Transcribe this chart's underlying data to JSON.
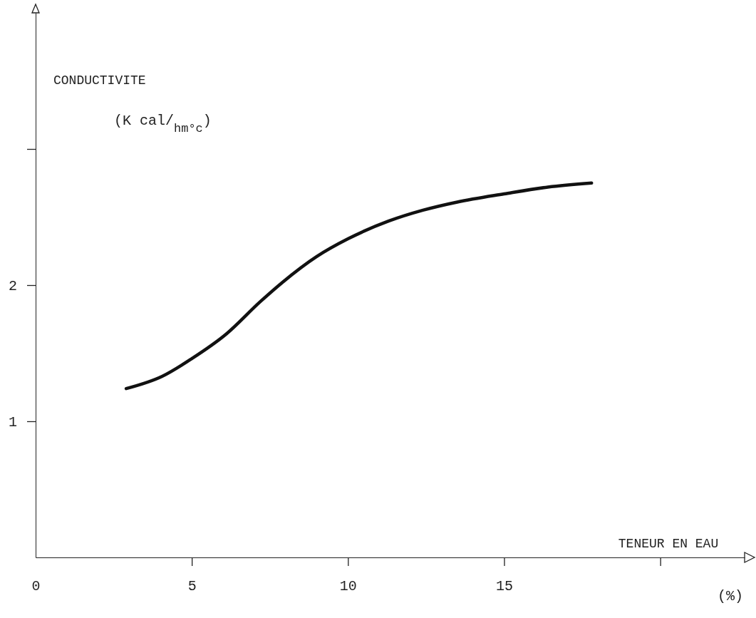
{
  "chart_data": {
    "type": "line",
    "xlabel": "TENEUR EN EAU",
    "ylabel": "CONDUCTIVITE",
    "annotations": [
      "(K cal/$_{hm°c}$)",
      "(%)"
    ],
    "xlim": [
      0,
      22.7
    ],
    "ylim": [
      0,
      4
    ],
    "xticks": [
      0,
      5,
      10,
      15,
      {
        "value": 20,
        "label": null
      }
    ],
    "yticks": [
      1,
      2,
      {
        "value": 3,
        "label": null
      }
    ],
    "grid": false,
    "legend": false,
    "marker": "none",
    "line_style": "solid",
    "series": [
      {
        "color": "#111111",
        "x": [
          2.9,
          4.05,
          5,
          6.1,
          7.2,
          7.9,
          9,
          10,
          11.3,
          12.4,
          13.5,
          15,
          16.4,
          17.8
        ],
        "values": [
          1.24,
          1.33,
          1.46,
          1.64,
          1.88,
          2.02,
          2.21,
          2.34,
          2.47,
          2.55,
          2.61,
          2.67,
          2.72,
          2.75
        ]
      }
    ]
  }
}
